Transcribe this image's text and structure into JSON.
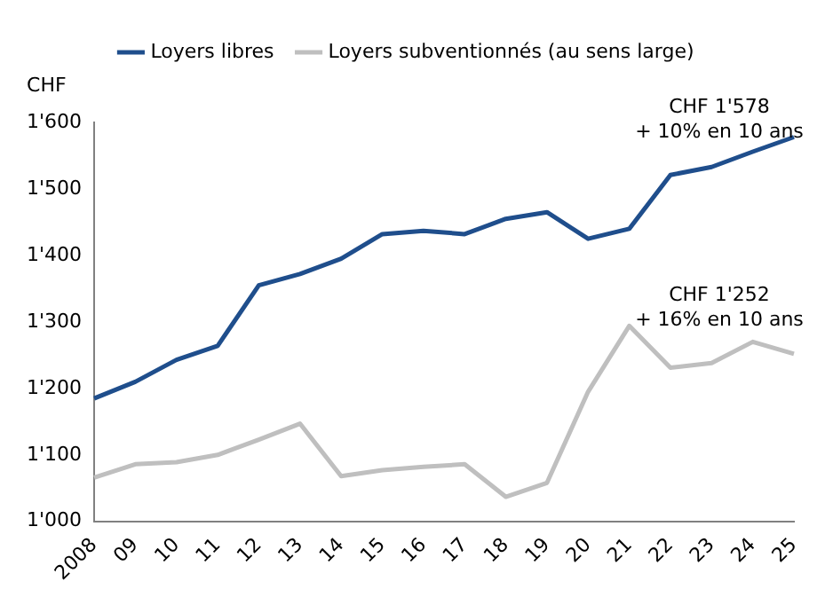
{
  "chart_data": {
    "type": "line",
    "ylabel": "CHF",
    "categories": [
      "2008",
      "09",
      "10",
      "11",
      "12",
      "13",
      "14",
      "15",
      "16",
      "17",
      "18",
      "19",
      "20",
      "21",
      "22",
      "23",
      "24",
      "25"
    ],
    "series": [
      {
        "name": "Loyers libres",
        "color": "#1f4e8c",
        "values": [
          1185,
          1210,
          1243,
          1264,
          1355,
          1372,
          1395,
          1432,
          1437,
          1432,
          1455,
          1465,
          1425,
          1440,
          1521,
          1533,
          1556,
          1578
        ]
      },
      {
        "name": "Loyers subventionnés (au sens large)",
        "color": "#bfbfbf",
        "values": [
          1066,
          1086,
          1089,
          1100,
          1123,
          1147,
          1068,
          1077,
          1082,
          1086,
          1037,
          1058,
          1195,
          1294,
          1231,
          1238,
          1270,
          1252
        ]
      }
    ],
    "ylim": [
      1000,
      1600
    ],
    "yticks": [
      {
        "value": 1000,
        "label": "1'000"
      },
      {
        "value": 1100,
        "label": "1'100"
      },
      {
        "value": 1200,
        "label": "1'200"
      },
      {
        "value": 1300,
        "label": "1'300"
      },
      {
        "value": 1400,
        "label": "1'400"
      },
      {
        "value": 1500,
        "label": "1'500"
      },
      {
        "value": 1600,
        "label": "1'600"
      }
    ],
    "grid": false,
    "legend": "top",
    "marker": "none",
    "line_style": "solid",
    "annotations": [
      "CHF 1'578\n+ 10% en 10 ans",
      "CHF 1'252\n+ 16% en 10 ans"
    ]
  }
}
